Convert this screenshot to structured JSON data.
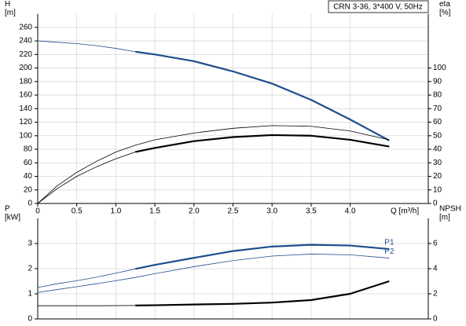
{
  "chart_data": [
    {
      "type": "line",
      "ylabel": [
        "H",
        "[m]"
      ],
      "y2label": [
        "eta",
        "[%]"
      ],
      "xlabel": "Q [m³/h]",
      "annotation": "CRN 3-36, 3*400 V, 50Hz",
      "x": [
        0,
        0.25,
        0.5,
        0.75,
        1,
        1.25,
        1.5,
        2,
        2.5,
        3,
        3.5,
        4,
        4.5
      ],
      "xlim": [
        0,
        5
      ],
      "xticks": [
        0,
        0.5,
        {
          "value": 1,
          "label": "1.0"
        },
        1.5,
        {
          "value": 2,
          "label": "2.0"
        },
        2.5,
        {
          "value": 3,
          "label": "3.0"
        },
        3.5,
        {
          "value": 4,
          "label": "4.0"
        }
      ],
      "ylim": [
        0,
        280
      ],
      "yticks": [
        0,
        20,
        40,
        60,
        80,
        100,
        120,
        140,
        160,
        180,
        200,
        220,
        240,
        260
      ],
      "y2lim": [
        0,
        140
      ],
      "y2ticks": [
        0,
        10,
        20,
        30,
        40,
        50,
        60,
        70,
        80,
        90,
        100
      ],
      "grid": true,
      "series": [
        {
          "color": "#1f4e8c",
          "width": 0.8,
          "values": [
            240,
            238,
            236,
            233,
            229,
            224,
            null,
            null,
            null,
            null,
            null,
            null,
            null
          ]
        },
        {
          "color": "#1f4e8c",
          "width": 2.2,
          "values": [
            null,
            null,
            null,
            null,
            null,
            224,
            220,
            210,
            195,
            177,
            153,
            124,
            93
          ]
        },
        {
          "color": "#000000",
          "width": 0.8,
          "axis": "y2",
          "values": [
            0,
            13,
            23,
            31,
            38,
            43,
            47,
            52,
            55.5,
            57.5,
            57,
            53.5,
            47
          ]
        },
        {
          "color": "#000000",
          "width": 0.8,
          "axis": "y2",
          "values": [
            0,
            11,
            20,
            27,
            33,
            38,
            null,
            null,
            null,
            null,
            null,
            null,
            null
          ]
        },
        {
          "color": "#000000",
          "width": 2.2,
          "axis": "y2",
          "values": [
            null,
            null,
            null,
            null,
            null,
            38,
            41,
            46,
            49,
            50.5,
            50,
            47,
            42
          ]
        }
      ]
    },
    {
      "type": "line",
      "ylabel": [
        "P",
        "[kW]"
      ],
      "y2label": [
        "NPSH",
        "[m]"
      ],
      "x": [
        0,
        0.25,
        0.5,
        0.75,
        1,
        1.25,
        1.5,
        2,
        2.5,
        3,
        3.5,
        4,
        4.5
      ],
      "xlim": [
        0,
        5
      ],
      "ylim": [
        0,
        4
      ],
      "yticks": [
        0,
        1,
        2,
        3
      ],
      "y2lim": [
        0,
        8
      ],
      "y2ticks": [
        0,
        2,
        4,
        6
      ],
      "grid": true,
      "series": [
        {
          "color": "#1f4e8c",
          "width": 0.8,
          "values": [
            1.25,
            1.4,
            1.52,
            1.66,
            1.82,
            1.99,
            null,
            null,
            null,
            null,
            null,
            null,
            null
          ]
        },
        {
          "name": "P1",
          "color": "#1f4e8c",
          "width": 2.2,
          "values": [
            null,
            null,
            null,
            null,
            null,
            1.99,
            2.15,
            2.43,
            2.7,
            2.88,
            2.95,
            2.92,
            2.78
          ]
        },
        {
          "name": "P2",
          "color": "#1f4e8c",
          "width": 0.8,
          "values": [
            1.05,
            1.17,
            1.28,
            1.4,
            1.52,
            1.65,
            1.8,
            2.08,
            2.32,
            2.5,
            2.58,
            2.55,
            2.42
          ]
        },
        {
          "color": "#000000",
          "width": 0.8,
          "axis": "y2",
          "values": [
            1.05,
            1.05,
            1.05,
            1.05,
            1.06,
            1.07,
            null,
            null,
            null,
            null,
            null,
            null,
            null
          ]
        },
        {
          "color": "#000000",
          "width": 2.2,
          "axis": "y2",
          "values": [
            null,
            null,
            null,
            null,
            null,
            1.07,
            1.09,
            1.15,
            1.2,
            1.3,
            1.5,
            2.0,
            3.0
          ]
        }
      ]
    }
  ]
}
